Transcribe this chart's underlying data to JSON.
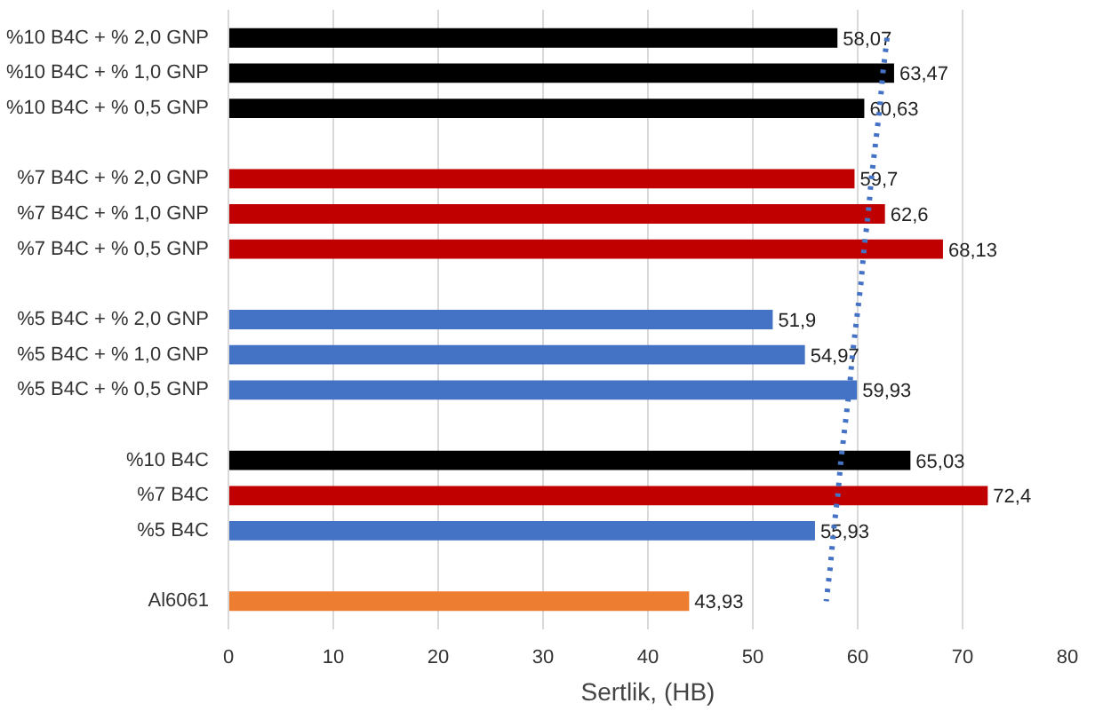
{
  "chart_data": {
    "type": "bar",
    "orientation": "horizontal",
    "xlabel": "Sertlik, (HB)",
    "categories": [
      "%10 B4C + % 2,0 GNP",
      "%10 B4C + % 1,0 GNP",
      "%10 B4C + % 0,5 GNP",
      null,
      "%7 B4C + % 2,0 GNP",
      "%7 B4C + % 1,0 GNP",
      "%7 B4C + % 0,5 GNP",
      null,
      "%5 B4C + % 2,0 GNP",
      "%5 B4C + % 1,0 GNP",
      "%5 B4C + % 0,5 GNP",
      null,
      "%10 B4C",
      "%7 B4C",
      "%5 B4C",
      null,
      "Al6061"
    ],
    "series": [
      {
        "values": [
          58.07,
          63.47,
          60.63,
          null,
          59.7,
          62.6,
          68.13,
          null,
          51.9,
          54.97,
          59.93,
          null,
          65.03,
          72.4,
          55.93,
          null,
          43.93
        ],
        "colors": [
          "#000000",
          "#000000",
          "#000000",
          null,
          "#c00000",
          "#c00000",
          "#c00000",
          null,
          "#4472c4",
          "#4472c4",
          "#4472c4",
          null,
          "#000000",
          "#c00000",
          "#4472c4",
          null,
          "#ed7d31"
        ],
        "value_labels": [
          "58,07",
          "63,47",
          "60,63",
          null,
          "59,7",
          "62,6",
          "68,13",
          null,
          "51,9",
          "54,97",
          "59,93",
          null,
          "65,03",
          "72,4",
          "55,93",
          null,
          "43,93"
        ]
      },
      {
        "type": "line",
        "color": "#4472c4",
        "line_style": "dotted",
        "values": [
          62.8,
          62.4,
          62.1,
          61.7,
          61.3,
          61.0,
          60.6,
          60.3,
          59.9,
          59.5,
          59.2,
          58.8,
          58.4,
          58.1,
          57.7,
          57.4,
          57.0
        ]
      }
    ],
    "xlim": [
      0,
      80
    ],
    "xticks": [
      0,
      10,
      20,
      30,
      40,
      50,
      60,
      70,
      80
    ],
    "grid": "x"
  }
}
